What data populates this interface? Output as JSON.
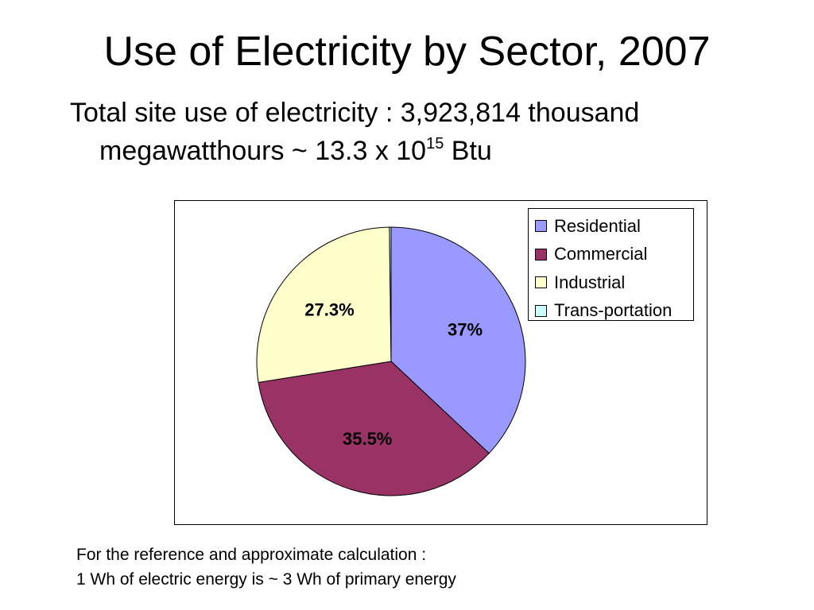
{
  "slide": {
    "title": "Use of Electricity by Sector, 2007",
    "subtitle_line1": "Total site use of electricity : 3,923,814 thousand",
    "subtitle_line2_prefix": "megawatthours ~ 13.3 x 10",
    "subtitle_exponent": "15",
    "subtitle_line2_suffix": " Btu",
    "footnote_line1": "For the reference and approximate calculation :",
    "footnote_line2": "1 Wh of electric energy is ~ 3 Wh of primary energy"
  },
  "chart_data": {
    "type": "pie",
    "title": "",
    "legend_position": "top-right",
    "slices": [
      {
        "name": "Residential",
        "value": 37.0,
        "label": "37%",
        "color": "#9999ff"
      },
      {
        "name": "Commercial",
        "value": 35.5,
        "label": "35.5%",
        "color": "#993366"
      },
      {
        "name": "Industrial",
        "value": 27.3,
        "label": "27.3%",
        "color": "#ffffcc"
      },
      {
        "name": "Trans-portation",
        "value": 0.2,
        "label": "",
        "color": "#ccffff"
      }
    ]
  }
}
